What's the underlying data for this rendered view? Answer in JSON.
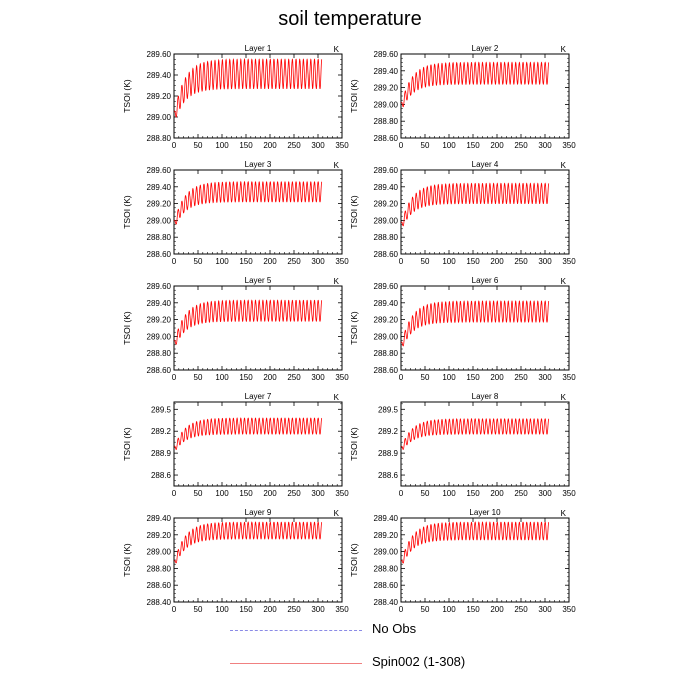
{
  "title": "soil temperature",
  "legend": {
    "no_obs": "No Obs",
    "run": "Spin002 (1-308)"
  },
  "colors": {
    "series": "#ff0000",
    "no_obs": "#8a8ae6",
    "run_legend": "#f08080"
  },
  "chart_data": [
    {
      "type": "line",
      "title": "Layer 1",
      "unit": "K",
      "ylabel": "TSOI  (K)",
      "xlim": [
        0,
        350
      ],
      "xticks": [
        0,
        50,
        100,
        150,
        200,
        250,
        300,
        350
      ],
      "ylim": [
        288.8,
        289.6
      ],
      "yticks": [
        "288.80",
        "289.00",
        "289.20",
        "289.40",
        "289.60"
      ],
      "series": [
        {
          "name": "Spin002 (1-308)",
          "x_range": [
            1,
            308
          ],
          "start": 289.0,
          "upper_plateau": 289.55,
          "lower_plateau": 289.27,
          "cycles": 40
        }
      ]
    },
    {
      "type": "line",
      "title": "Layer 2",
      "unit": "K",
      "ylabel": "TSOI  (K)",
      "xlim": [
        0,
        350
      ],
      "xticks": [
        0,
        50,
        100,
        150,
        200,
        250,
        300,
        350
      ],
      "ylim": [
        288.6,
        289.6
      ],
      "yticks": [
        "288.60",
        "288.80",
        "289.00",
        "289.20",
        "289.40",
        "289.60"
      ],
      "series": [
        {
          "name": "Spin002 (1-308)",
          "x_range": [
            1,
            308
          ],
          "start": 288.97,
          "upper_plateau": 289.5,
          "lower_plateau": 289.24,
          "cycles": 40
        }
      ]
    },
    {
      "type": "line",
      "title": "Layer 3",
      "unit": "K",
      "ylabel": "TSOI  (K)",
      "xlim": [
        0,
        350
      ],
      "xticks": [
        0,
        50,
        100,
        150,
        200,
        250,
        300,
        350
      ],
      "ylim": [
        288.6,
        289.6
      ],
      "yticks": [
        "288.60",
        "288.80",
        "289.00",
        "289.20",
        "289.40",
        "289.60"
      ],
      "series": [
        {
          "name": "Spin002 (1-308)",
          "x_range": [
            1,
            308
          ],
          "start": 288.95,
          "upper_plateau": 289.46,
          "lower_plateau": 289.22,
          "cycles": 40
        }
      ]
    },
    {
      "type": "line",
      "title": "Layer 4",
      "unit": "K",
      "ylabel": "TSOI  (K)",
      "xlim": [
        0,
        350
      ],
      "xticks": [
        0,
        50,
        100,
        150,
        200,
        250,
        300,
        350
      ],
      "ylim": [
        288.6,
        289.6
      ],
      "yticks": [
        "288.60",
        "288.80",
        "289.00",
        "289.20",
        "289.40",
        "289.60"
      ],
      "series": [
        {
          "name": "Spin002 (1-308)",
          "x_range": [
            1,
            308
          ],
          "start": 288.93,
          "upper_plateau": 289.44,
          "lower_plateau": 289.2,
          "cycles": 40
        }
      ]
    },
    {
      "type": "line",
      "title": "Layer 5",
      "unit": "K",
      "ylabel": "TSOI  (K)",
      "xlim": [
        0,
        350
      ],
      "xticks": [
        0,
        50,
        100,
        150,
        200,
        250,
        300,
        350
      ],
      "ylim": [
        288.6,
        289.6
      ],
      "yticks": [
        "288.60",
        "288.80",
        "289.00",
        "289.20",
        "289.40",
        "289.60"
      ],
      "series": [
        {
          "name": "Spin002 (1-308)",
          "x_range": [
            1,
            308
          ],
          "start": 288.9,
          "upper_plateau": 289.43,
          "lower_plateau": 289.18,
          "cycles": 40
        }
      ]
    },
    {
      "type": "line",
      "title": "Layer 6",
      "unit": "K",
      "ylabel": "TSOI  (K)",
      "xlim": [
        0,
        350
      ],
      "xticks": [
        0,
        50,
        100,
        150,
        200,
        250,
        300,
        350
      ],
      "ylim": [
        288.6,
        289.6
      ],
      "yticks": [
        "288.60",
        "288.80",
        "289.00",
        "289.20",
        "289.40",
        "289.60"
      ],
      "series": [
        {
          "name": "Spin002 (1-308)",
          "x_range": [
            1,
            308
          ],
          "start": 288.88,
          "upper_plateau": 289.42,
          "lower_plateau": 289.17,
          "cycles": 40
        }
      ]
    },
    {
      "type": "line",
      "title": "Layer 7",
      "unit": "K",
      "ylabel": "TSOI  (K)",
      "xlim": [
        0,
        350
      ],
      "xticks": [
        0,
        50,
        100,
        150,
        200,
        250,
        300,
        350
      ],
      "ylim": [
        288.45,
        289.6
      ],
      "yticks": [
        "288.6",
        "288.9",
        "289.2",
        "289.5"
      ],
      "series": [
        {
          "name": "Spin002 (1-308)",
          "x_range": [
            1,
            308
          ],
          "start": 288.95,
          "upper_plateau": 289.38,
          "lower_plateau": 289.16,
          "cycles": 40
        }
      ]
    },
    {
      "type": "line",
      "title": "Layer 8",
      "unit": "K",
      "ylabel": "TSOI  (K)",
      "xlim": [
        0,
        350
      ],
      "xticks": [
        0,
        50,
        100,
        150,
        200,
        250,
        300,
        350
      ],
      "ylim": [
        288.45,
        289.6
      ],
      "yticks": [
        "288.6",
        "288.9",
        "289.2",
        "289.5"
      ],
      "series": [
        {
          "name": "Spin002 (1-308)",
          "x_range": [
            1,
            308
          ],
          "start": 288.95,
          "upper_plateau": 289.37,
          "lower_plateau": 289.16,
          "cycles": 40
        }
      ]
    },
    {
      "type": "line",
      "title": "Layer 9",
      "unit": "K",
      "ylabel": "TSOI  (K)",
      "xlim": [
        0,
        350
      ],
      "xticks": [
        0,
        50,
        100,
        150,
        200,
        250,
        300,
        350
      ],
      "ylim": [
        288.4,
        289.4
      ],
      "yticks": [
        "288.40",
        "288.60",
        "288.80",
        "289.00",
        "289.20",
        "289.40"
      ],
      "series": [
        {
          "name": "Spin002 (1-308)",
          "x_range": [
            1,
            308
          ],
          "start": 288.85,
          "upper_plateau": 289.35,
          "lower_plateau": 289.15,
          "cycles": 40
        }
      ]
    },
    {
      "type": "line",
      "title": "Layer 10",
      "unit": "K",
      "ylabel": "TSOI  (K)",
      "xlim": [
        0,
        350
      ],
      "xticks": [
        0,
        50,
        100,
        150,
        200,
        250,
        300,
        350
      ],
      "ylim": [
        288.4,
        289.4
      ],
      "yticks": [
        "288.40",
        "288.60",
        "288.80",
        "289.00",
        "289.20",
        "289.40"
      ],
      "series": [
        {
          "name": "Spin002 (1-308)",
          "x_range": [
            1,
            308
          ],
          "start": 288.85,
          "upper_plateau": 289.35,
          "lower_plateau": 289.14,
          "cycles": 40
        }
      ]
    }
  ]
}
